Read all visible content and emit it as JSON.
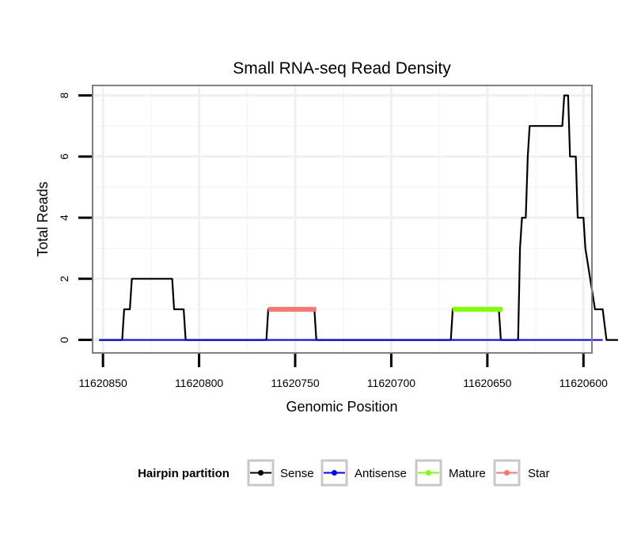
{
  "chart_data": {
    "type": "line",
    "title": "Small RNA-seq Read Density",
    "xlabel": "Genomic Position",
    "ylabel": "Total Reads",
    "x_reversed": true,
    "xlim": [
      11620855,
      11620596
    ],
    "ylim": [
      -0.4,
      8.3
    ],
    "x_ticks": [
      11620850,
      11620800,
      11620750,
      11620700,
      11620650,
      11620600
    ],
    "x_tick_labels": [
      "11620850",
      "11620800",
      "11620750",
      "11620700",
      "11620650",
      "11620600"
    ],
    "y_ticks": [
      0,
      2,
      4,
      6,
      8
    ],
    "y_tick_labels": [
      "0",
      "2",
      "4",
      "6",
      "8"
    ],
    "grid": true,
    "legend": {
      "title": "Hairpin partition",
      "position": "bottom",
      "entries": [
        "Sense",
        "Antisense",
        "Mature",
        "Star"
      ]
    },
    "series": [
      {
        "name": "Sense",
        "color": "#000000",
        "x": [
          11620852,
          11620840,
          11620839,
          11620836,
          11620835,
          11620821,
          11620814,
          11620813,
          11620808,
          11620807,
          11620790,
          11620765,
          11620764,
          11620740,
          11620739,
          11620669,
          11620668,
          11620644,
          11620643,
          11620635,
          11620634,
          11620633,
          11620632,
          11620630,
          11620629,
          11620628,
          11620627,
          11620611,
          11620610,
          11620608,
          11620607,
          11620604,
          11620603,
          11620600,
          11620599,
          11620594,
          11620593,
          11620590,
          11620588,
          11620582
        ],
        "y": [
          0,
          0,
          1,
          1,
          2,
          2,
          2,
          1,
          1,
          0,
          0,
          0,
          1,
          1,
          0,
          0,
          1,
          1,
          0,
          0,
          0,
          3,
          4,
          4,
          6,
          7,
          7,
          7,
          8,
          8,
          6,
          6,
          4,
          4,
          3,
          1,
          1,
          1,
          0,
          0
        ]
      },
      {
        "name": "Antisense",
        "color": "#0000ff",
        "x": [
          11620852,
          11620590
        ],
        "y": [
          0,
          0
        ]
      },
      {
        "name": "Mature",
        "color": "#7fff00",
        "x": [
          11620668,
          11620642
        ],
        "y": [
          1,
          1
        ]
      },
      {
        "name": "Star",
        "color": "#f8766d",
        "x": [
          11620764,
          11620739
        ],
        "y": [
          1,
          1
        ]
      }
    ]
  }
}
